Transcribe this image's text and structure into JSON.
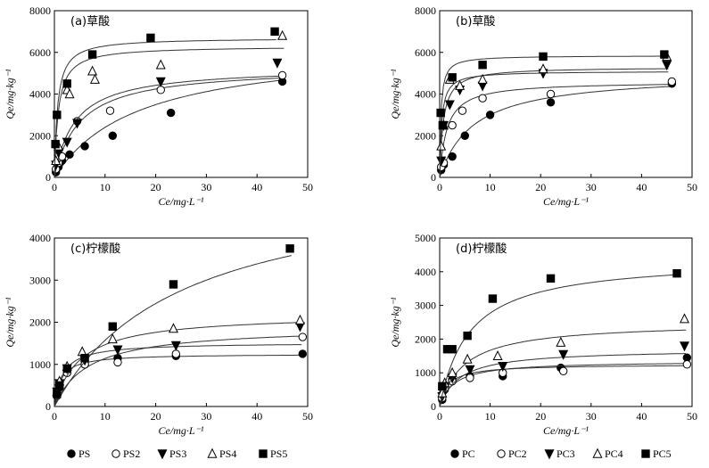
{
  "chart_data": [
    {
      "type": "scatter",
      "title": "(a)草酸",
      "xlabel": "Ce/mg·L⁻¹",
      "ylabel": "Qe/mg·kg⁻¹",
      "xlim": [
        0,
        50
      ],
      "ylim": [
        0,
        8000
      ],
      "xticks": [
        "0",
        "10",
        "20",
        "30",
        "40",
        "50"
      ],
      "yticks": [
        "0",
        "2000",
        "4000",
        "6000",
        "8000"
      ],
      "series": [
        {
          "name": "PS",
          "marker": "circle-filled",
          "x": [
            0.3,
            0.8,
            1.5,
            3,
            6,
            11.5,
            23,
            45
          ],
          "y": [
            250,
            500,
            800,
            1100,
            1500,
            2000,
            3100,
            4600
          ],
          "fit": {
            "qmax": 6400,
            "k": 0.06
          }
        },
        {
          "name": "PS2",
          "marker": "circle-open",
          "x": [
            0.3,
            0.8,
            1.5,
            4.5,
            11,
            21,
            45
          ],
          "y": [
            400,
            700,
            1000,
            2700,
            3200,
            4200,
            4900
          ],
          "fit": {
            "qmax": 5300,
            "k": 0.2
          }
        },
        {
          "name": "PS3",
          "marker": "triangle-down-filled",
          "x": [
            0.3,
            0.8,
            2.5,
            4.5,
            21,
            44
          ],
          "y": [
            600,
            1200,
            1700,
            2600,
            4600,
            5500
          ],
          "fit": {
            "qmax": 5300,
            "k": 0.25
          }
        },
        {
          "name": "PS4",
          "marker": "triangle-up-open",
          "x": [
            0.3,
            0.8,
            2.5,
            3,
            7.5,
            8,
            21,
            45
          ],
          "y": [
            800,
            1500,
            4200,
            4000,
            5100,
            4700,
            5400,
            6800
          ],
          "fit": {
            "qmax": 6300,
            "k": 1.3
          }
        },
        {
          "name": "PS5",
          "marker": "square-filled",
          "x": [
            0.2,
            0.5,
            2.5,
            7.5,
            19,
            43.5
          ],
          "y": [
            1600,
            3000,
            4500,
            5900,
            6700,
            7000
          ],
          "fit": {
            "qmax": 6700,
            "k": 1.6
          }
        }
      ],
      "legend": {
        "position": "bottom",
        "entries": [
          "PS",
          "PS2",
          "PS3",
          "PS4",
          "PS5"
        ]
      }
    },
    {
      "type": "scatter",
      "title": "(b)草酸",
      "xlabel": "Ce/mg·L⁻¹",
      "ylabel": "Qe/mg·kg⁻¹",
      "xlim": [
        0,
        50
      ],
      "ylim": [
        0,
        8000
      ],
      "xticks": [
        "0",
        "10",
        "20",
        "30",
        "40",
        "50"
      ],
      "yticks": [
        "0",
        "2000",
        "4000",
        "6000",
        "8000"
      ],
      "series": [
        {
          "name": "PC",
          "marker": "circle-filled",
          "x": [
            0.3,
            0.8,
            2.5,
            5,
            10,
            22,
            46
          ],
          "y": [
            350,
            600,
            1000,
            2000,
            3000,
            3600,
            4500
          ],
          "fit": {
            "qmax": 5000,
            "k": 0.15
          }
        },
        {
          "name": "PC2",
          "marker": "circle-open",
          "x": [
            0.3,
            0.8,
            2.5,
            4.5,
            8.5,
            22,
            46
          ],
          "y": [
            500,
            700,
            2500,
            3200,
            3800,
            4000,
            4600
          ],
          "fit": {
            "qmax": 4600,
            "k": 0.7
          }
        },
        {
          "name": "PC3",
          "marker": "triangle-down-filled",
          "x": [
            0.3,
            0.8,
            2,
            4,
            8.5,
            20.5,
            45
          ],
          "y": [
            800,
            2500,
            3500,
            4200,
            4400,
            5000,
            5400
          ],
          "fit": {
            "qmax": 5300,
            "k": 1.4
          }
        },
        {
          "name": "PC4",
          "marker": "triangle-up-open",
          "x": [
            0.3,
            0.8,
            2,
            4,
            8.5,
            20.5,
            45
          ],
          "y": [
            1500,
            2500,
            4700,
            4400,
            4700,
            5200,
            5800
          ],
          "fit": {
            "qmax": 5100,
            "k": 2.6
          }
        },
        {
          "name": "PC5",
          "marker": "square-filled",
          "x": [
            0.2,
            0.6,
            2.5,
            8.5,
            20.5,
            44.5
          ],
          "y": [
            3100,
            2500,
            4800,
            5400,
            5800,
            5900
          ],
          "fit": {
            "qmax": 5850,
            "k": 4
          }
        }
      ],
      "legend": {
        "position": "bottom",
        "entries": [
          "PC",
          "PC2",
          "PC3",
          "PC4",
          "PC5"
        ]
      }
    },
    {
      "type": "scatter",
      "title": "(c)柠檬酸",
      "xlabel": "Ce/mg·L⁻¹",
      "ylabel": "Qe/mg·kg⁻¹",
      "xlim": [
        0,
        50
      ],
      "ylim": [
        0,
        4000
      ],
      "xticks": [
        "0",
        "10",
        "20",
        "30",
        "40",
        "50"
      ],
      "yticks": [
        "0",
        "1000",
        "2000",
        "3000",
        "4000"
      ],
      "series": [
        {
          "name": "PS",
          "marker": "circle-filled",
          "x": [
            0.5,
            1,
            2.5,
            6,
            12.5,
            24,
            49
          ],
          "y": [
            250,
            450,
            800,
            1000,
            1150,
            1200,
            1250
          ],
          "fit": {
            "qmax": 1250,
            "k": 0.8
          }
        },
        {
          "name": "PS2",
          "marker": "circle-open",
          "x": [
            0.5,
            1,
            2.5,
            6,
            12.5,
            24,
            49
          ],
          "y": [
            300,
            500,
            800,
            1000,
            1050,
            1250,
            1650
          ],
          "fit": {
            "qmax": 1900,
            "k": 0.15
          }
        },
        {
          "name": "PS3",
          "marker": "triangle-down-filled",
          "x": [
            0.5,
            1,
            2.5,
            6,
            12.5,
            24,
            48.5
          ],
          "y": [
            350,
            550,
            900,
            1100,
            1350,
            1450,
            1900
          ],
          "fit": {
            "qmax": 1520,
            "k": 0.6
          }
        },
        {
          "name": "PS4",
          "marker": "triangle-up-open",
          "x": [
            0.5,
            1,
            2.5,
            5.5,
            11.5,
            23.5,
            48.5
          ],
          "y": [
            350,
            600,
            950,
            1300,
            1600,
            1850,
            2050
          ],
          "fit": {
            "qmax": 2200,
            "k": 0.2
          }
        },
        {
          "name": "PS5",
          "marker": "square-filled",
          "x": [
            0.5,
            1,
            2.5,
            6,
            11.5,
            23.5,
            46.5
          ],
          "y": [
            300,
            500,
            900,
            1150,
            1900,
            2900,
            3750
          ],
          "fit": {
            "qmax": 5500,
            "k": 0.04
          }
        }
      ],
      "legend": {
        "position": "bottom",
        "entries": [
          "PS",
          "PS2",
          "PS3",
          "PS4",
          "PS5"
        ]
      }
    },
    {
      "type": "scatter",
      "title": "(d)柠檬酸",
      "xlabel": "Ce/mg·L⁻¹",
      "ylabel": "Qe/mg·kg⁻¹",
      "xlim": [
        0,
        50
      ],
      "ylim": [
        0,
        5000
      ],
      "xticks": [
        "0",
        "10",
        "20",
        "30",
        "40",
        "50"
      ],
      "yticks": [
        "0",
        "1000",
        "2000",
        "3000",
        "4000",
        "5000"
      ],
      "series": [
        {
          "name": "PC",
          "marker": "circle-filled",
          "x": [
            0.5,
            1,
            2.5,
            6,
            12.5,
            24,
            49
          ],
          "y": [
            200,
            500,
            800,
            900,
            900,
            1150,
            1450
          ],
          "fit": {
            "qmax": 1250,
            "k": 0.6
          }
        },
        {
          "name": "PC2",
          "marker": "circle-open",
          "x": [
            0.5,
            1,
            2.5,
            6,
            12.5,
            24.5,
            49
          ],
          "y": [
            250,
            550,
            750,
            850,
            1000,
            1050,
            1250
          ],
          "fit": {
            "qmax": 1350,
            "k": 0.35
          }
        },
        {
          "name": "PC3",
          "marker": "triangle-down-filled",
          "x": [
            0.5,
            1,
            2.5,
            6,
            12.5,
            24.5,
            48.5
          ],
          "y": [
            300,
            600,
            850,
            1100,
            1200,
            1550,
            1800
          ],
          "fit": {
            "qmax": 1700,
            "k": 0.25
          }
        },
        {
          "name": "PC4",
          "marker": "triangle-up-open",
          "x": [
            0.5,
            1,
            2.5,
            5.5,
            11.5,
            24,
            48.5
          ],
          "y": [
            400,
            700,
            1000,
            1400,
            1500,
            1900,
            2600
          ],
          "fit": {
            "qmax": 2500,
            "k": 0.2
          }
        },
        {
          "name": "PC5",
          "marker": "square-filled",
          "x": [
            0.5,
            1.5,
            2.5,
            5.5,
            10.5,
            22,
            47
          ],
          "y": [
            600,
            1700,
            1700,
            2100,
            3200,
            3800,
            3950
          ],
          "fit": {
            "qmax": 4400,
            "k": 0.17
          }
        }
      ],
      "legend": {
        "position": "bottom",
        "entries": [
          "PC",
          "PC2",
          "PC3",
          "PC4",
          "PC5"
        ]
      }
    }
  ]
}
